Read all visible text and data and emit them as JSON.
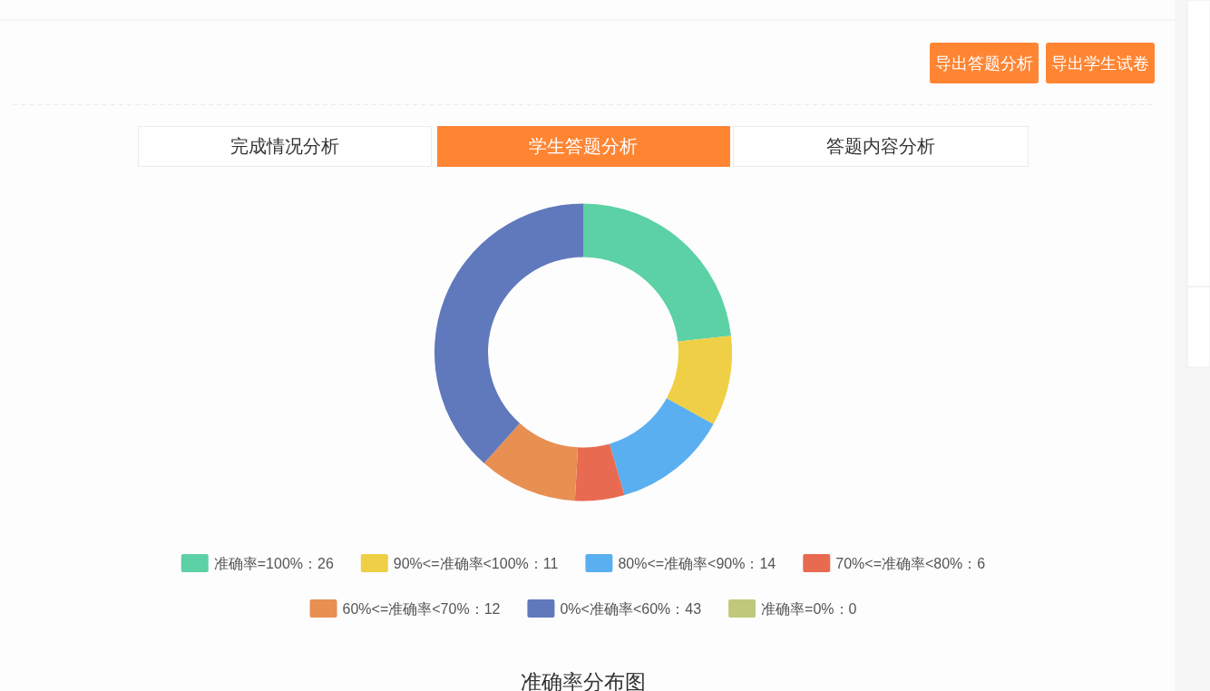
{
  "chart_data": {
    "type": "donut",
    "title": "准确率分布图",
    "categories": [
      "准确率=100%：26",
      "90%<=准确率<100%：11",
      "80%<=准确率<90%：14",
      "70%<=准确率<80%：6",
      "60%<=准确率<70%：12",
      "0%<准确率<60%：43",
      "准确率=0%：0"
    ],
    "values": [
      26,
      11,
      14,
      6,
      12,
      43,
      0
    ],
    "colors": [
      "#5bd1a5",
      "#efcf45",
      "#5aaff0",
      "#e86a50",
      "#e88f52",
      "#6079bc",
      "#c0c97b"
    ],
    "legend": "bottom",
    "annotations": [
      "导出答题分析",
      "导出学生试卷",
      "完成情况分析",
      "学生答题分析",
      "答题内容分析"
    ]
  }
}
